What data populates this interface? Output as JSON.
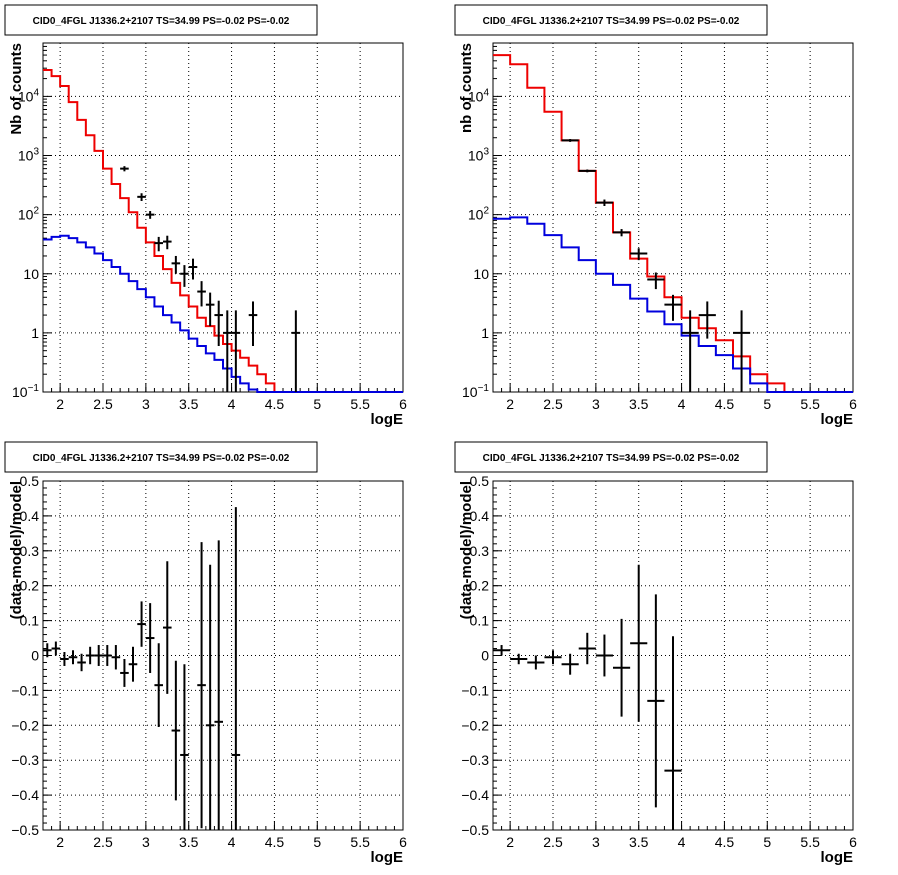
{
  "colors": {
    "data": "#000000",
    "total_model": "#ee0000",
    "source_model": "#0000dd",
    "grid": "#000000",
    "background": "#ffffff"
  },
  "chart_data": [
    {
      "type": "line",
      "panel": "top-left",
      "title": "CID0_4FGL J1336.2+2107 TS=34.99 PS=-0.02 PS=-0.02",
      "xlabel": "logE",
      "ylabel": "Nb of counts",
      "xlim": [
        1.8,
        6
      ],
      "ylim": [
        0.1,
        80000
      ],
      "yscale": "log",
      "grid": true,
      "xticks": [
        "2",
        "2.5",
        "3",
        "3.5",
        "4",
        "4.5",
        "5",
        "5.5",
        "6"
      ],
      "yticks": [
        "10^-1",
        "1",
        "10",
        "10^2",
        "10^3",
        "10^4"
      ],
      "bin_edges": [
        1.8,
        1.9,
        2.0,
        2.1,
        2.2,
        2.3,
        2.4,
        2.5,
        2.6,
        2.7,
        2.8,
        2.9,
        3.0,
        3.1,
        3.2,
        3.3,
        3.4,
        3.5,
        3.6,
        3.7,
        3.8,
        3.9,
        4.0,
        4.1,
        4.2,
        4.3,
        4.4,
        4.5,
        4.6,
        4.7,
        4.8,
        4.9,
        5.0,
        5.1,
        5.2,
        5.3,
        5.4,
        5.5,
        5.6,
        5.7,
        5.8,
        5.9,
        6.0
      ],
      "series": [
        {
          "name": "",
          "style": "step",
          "color": "#ee0000",
          "values": [
            28000,
            22000,
            15000,
            8000,
            4000,
            2200,
            1200,
            600,
            330,
            190,
            110,
            60,
            34,
            20,
            12,
            7,
            4.3,
            2.8,
            1.8,
            1.3,
            0.9,
            0.65,
            0.5,
            0.38,
            0.28,
            0.2,
            0.14,
            0.1,
            0.1,
            0.1,
            0.1,
            0.1,
            0.1,
            0.1,
            0.1,
            0.1,
            0.1,
            0.1,
            0.1,
            0.1,
            0.1,
            0.1
          ]
        },
        {
          "name": "",
          "style": "step",
          "color": "#0000dd",
          "values": [
            38,
            42,
            44,
            40,
            34,
            28,
            22,
            17,
            13,
            10,
            7.5,
            5.5,
            4,
            2.8,
            2.0,
            1.5,
            1.1,
            0.8,
            0.6,
            0.45,
            0.35,
            0.25,
            0.18,
            0.14,
            0.11,
            0.1,
            0.1,
            0.1,
            0.1,
            0.1,
            0.1,
            0.1,
            0.1,
            0.1,
            0.1,
            0.1,
            0.1,
            0.1,
            0.1,
            0.1,
            0.1,
            0.1
          ]
        },
        {
          "name": "",
          "style": "errorbar",
          "color": "#000000",
          "x": [
            2.75,
            2.95,
            3.05,
            3.15,
            3.25,
            3.35,
            3.45,
            3.55,
            3.65,
            3.75,
            3.85,
            3.95,
            4.05,
            4.25,
            4.75
          ],
          "xerr": 0.05,
          "y": [
            600,
            200,
            100,
            33,
            35,
            15,
            10,
            13,
            5,
            3,
            2,
            1,
            1,
            2,
            1
          ],
          "ylo": [
            540,
            170,
            85,
            24,
            26,
            10,
            6,
            8,
            2.8,
            1.3,
            0.6,
            0.1,
            0.1,
            0.6,
            0.1
          ],
          "yhi": [
            660,
            230,
            115,
            42,
            44,
            20,
            14,
            18,
            7.5,
            4.8,
            3.5,
            2.4,
            2.4,
            3.4,
            2.4
          ]
        }
      ]
    },
    {
      "type": "line",
      "panel": "top-right",
      "title": "CID0_4FGL J1336.2+2107 TS=34.99 PS=-0.02 PS=-0.02",
      "xlabel": "logE",
      "ylabel": "nb of counts",
      "xlim": [
        1.8,
        6
      ],
      "ylim": [
        0.1,
        80000
      ],
      "yscale": "log",
      "grid": true,
      "xticks": [
        "2",
        "2.5",
        "3",
        "3.5",
        "4",
        "4.5",
        "5",
        "5.5",
        "6"
      ],
      "yticks": [
        "10^-1",
        "1",
        "10",
        "10^2",
        "10^3",
        "10^4"
      ],
      "bin_edges": [
        1.8,
        2.0,
        2.2,
        2.4,
        2.6,
        2.8,
        3.0,
        3.2,
        3.4,
        3.6,
        3.8,
        4.0,
        4.2,
        4.4,
        4.6,
        4.8,
        5.0,
        5.2,
        5.4,
        5.6,
        5.8,
        6.0
      ],
      "series": [
        {
          "name": "",
          "style": "step",
          "color": "#ee0000",
          "values": [
            50000,
            35000,
            14000,
            5500,
            1800,
            550,
            160,
            50,
            18,
            9,
            4,
            1.8,
            1.2,
            0.75,
            0.4,
            0.2,
            0.14,
            0.1,
            0.1,
            0.1,
            0.1
          ]
        },
        {
          "name": "",
          "style": "step",
          "color": "#0000dd",
          "values": [
            85,
            90,
            70,
            45,
            28,
            17,
            10,
            6.5,
            3.8,
            2.3,
            1.4,
            0.9,
            0.6,
            0.42,
            0.25,
            0.14,
            0.1,
            0.1,
            0.1,
            0.1,
            0.1
          ]
        },
        {
          "name": "",
          "style": "errorbar",
          "color": "#000000",
          "x": [
            2.7,
            2.9,
            3.1,
            3.3,
            3.5,
            3.7,
            3.9,
            4.1,
            4.3,
            4.7
          ],
          "xerr": 0.1,
          "y": [
            1800,
            550,
            160,
            50,
            22,
            8,
            3,
            1,
            2,
            1
          ],
          "ylo": [
            1700,
            520,
            140,
            43,
            17,
            5.5,
            1.6,
            0.1,
            0.8,
            0.1
          ],
          "yhi": [
            1900,
            580,
            180,
            57,
            27,
            10.5,
            4.4,
            2.4,
            3.4,
            2.4
          ]
        }
      ]
    },
    {
      "type": "scatter",
      "panel": "bottom-left",
      "title": "CID0_4FGL J1336.2+2107 TS=34.99 PS=-0.02 PS=-0.02",
      "xlabel": "logE",
      "ylabel": "(data-model)/model",
      "xlim": [
        1.8,
        6
      ],
      "ylim": [
        -0.5,
        0.5
      ],
      "grid": true,
      "xticks": [
        "2",
        "2.5",
        "3",
        "3.5",
        "4",
        "4.5",
        "5",
        "5.5",
        "6"
      ],
      "yticks": [
        "-0.5",
        "-0.4",
        "-0.3",
        "-0.2",
        "-0.1",
        "0",
        "0.1",
        "0.2",
        "0.3",
        "0.4",
        "0.5"
      ],
      "series": [
        {
          "name": "",
          "style": "errorbar",
          "color": "#000000",
          "x": [
            1.85,
            1.95,
            2.05,
            2.15,
            2.25,
            2.35,
            2.45,
            2.55,
            2.65,
            2.75,
            2.85,
            2.95,
            3.05,
            3.15,
            3.25,
            3.35,
            3.45,
            3.65,
            3.75,
            3.85,
            4.05
          ],
          "xerr": 0.05,
          "y": [
            0.015,
            0.02,
            -0.01,
            -0.005,
            -0.02,
            0.0,
            0.0,
            0.0,
            -0.005,
            -0.05,
            -0.025,
            0.09,
            0.05,
            -0.085,
            0.08,
            -0.215,
            -0.285,
            -0.085,
            -0.2,
            -0.19,
            -0.285
          ],
          "yerr": [
            0.02,
            0.02,
            0.02,
            0.02,
            0.025,
            0.025,
            0.03,
            0.03,
            0.035,
            0.04,
            0.05,
            0.065,
            0.1,
            0.12,
            0.19,
            0.2,
            0.26,
            0.41,
            0.46,
            0.52,
            0.71
          ]
        }
      ]
    },
    {
      "type": "scatter",
      "panel": "bottom-right",
      "title": "CID0_4FGL J1336.2+2107 TS=34.99 PS=-0.02 PS=-0.02",
      "xlabel": "logE",
      "ylabel": "(data-model)/model",
      "xlim": [
        1.8,
        6
      ],
      "ylim": [
        -0.5,
        0.5
      ],
      "grid": true,
      "xticks": [
        "2",
        "2.5",
        "3",
        "3.5",
        "4",
        "4.5",
        "5",
        "5.5",
        "6"
      ],
      "yticks": [
        "-0.5",
        "-0.4",
        "-0.3",
        "-0.2",
        "-0.1",
        "0",
        "0.1",
        "0.2",
        "0.3",
        "0.4",
        "0.5"
      ],
      "series": [
        {
          "name": "",
          "style": "errorbar",
          "color": "#000000",
          "x": [
            1.9,
            2.1,
            2.3,
            2.5,
            2.7,
            2.9,
            3.1,
            3.3,
            3.5,
            3.7,
            3.9
          ],
          "xerr": 0.1,
          "y": [
            0.015,
            -0.01,
            -0.02,
            -0.005,
            -0.025,
            0.02,
            -0.0,
            -0.035,
            0.035,
            -0.13,
            -0.33
          ],
          "yerr": [
            0.015,
            0.015,
            0.02,
            0.02,
            0.03,
            0.045,
            0.06,
            0.14,
            0.225,
            0.305,
            0.385
          ]
        }
      ]
    }
  ]
}
